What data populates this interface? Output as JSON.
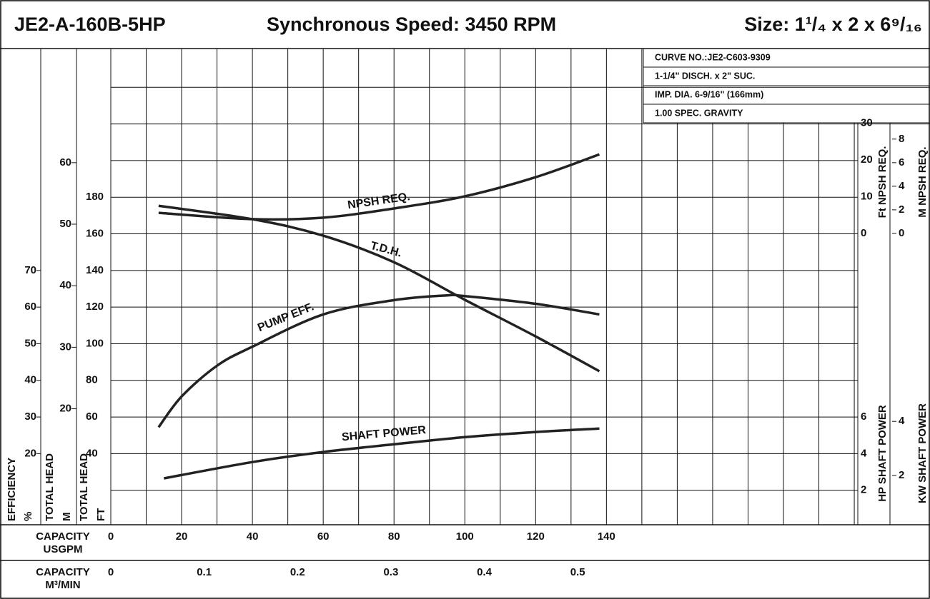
{
  "chart_data": {
    "type": "line",
    "title": "JE2-A-160B-5HP",
    "speed": "Synchronous Speed: 3450 RPM",
    "size": "Size: 1¹/₄ x 2 x 6⁹/₁₆",
    "notes": [
      "CURVE NO.:JE2-C603-9309",
      "1-1/4\" DISCH. x 2\" SUC.",
      "IMP. DIA. 6-9/16\" (166mm)",
      "1.00 SPEC. GRAVITY"
    ],
    "x_axes": [
      {
        "label": [
          "CAPACITY",
          "USGPM"
        ],
        "xlim": [
          0,
          211
        ],
        "xticks": [
          0,
          20,
          40,
          60,
          80,
          100,
          120,
          140
        ],
        "xgrid": [
          10,
          20,
          30,
          40,
          50,
          60,
          70,
          80,
          90,
          100,
          110,
          120,
          130,
          140,
          150,
          160,
          170,
          180,
          190,
          200,
          210
        ]
      },
      {
        "label": [
          "CAPACITY",
          "M³/MIN"
        ],
        "xlim": [
          0,
          0.8
        ],
        "xticks": [
          0,
          0.1,
          0.2,
          0.3,
          0.4,
          0.5
        ]
      }
    ],
    "y_axes": [
      {
        "label": [
          "EFFICIENCY",
          "%"
        ],
        "ylim": [
          0,
          130
        ],
        "yticks": [
          20,
          30,
          40,
          50,
          60,
          70
        ],
        "series": [
          {
            "name": "PUMP EFF.",
            "color": "#222222",
            "x": [
              13.5,
              20,
              30,
              40,
              60,
              80,
              95,
              100,
              120,
              138
            ],
            "values": [
              27.2,
              35.6,
              44,
              49.2,
              58,
              61.9,
              63.2,
              63,
              60.9,
              58
            ]
          }
        ]
      },
      {
        "label": [
          "TOTAL HEAD",
          "M"
        ],
        "ylim": [
          0.8,
          78.2
        ],
        "yticks": [
          20,
          30,
          40,
          50,
          60
        ],
        "series": []
      },
      {
        "label": [
          "TOTAL HEAD",
          "FT"
        ],
        "ylim": [
          0,
          260
        ],
        "yticks": [
          40,
          60,
          80,
          100,
          120,
          140,
          160,
          180
        ],
        "ygrid": [
          20,
          40,
          60,
          80,
          100,
          120,
          140,
          160,
          180,
          200,
          220,
          240
        ],
        "series": [
          {
            "name": "T.D.H.",
            "color": "#222222",
            "x": [
              13.5,
              40,
              60,
              80,
              100,
              120,
              138
            ],
            "values": [
              175.3,
              168,
              159,
              144.5,
              124,
              104,
              85
            ]
          }
        ]
      },
      {
        "label": [
          "Ft NPSH REQ."
        ],
        "ylim": [
          -79.8,
          49.7
        ],
        "yticks": [
          0,
          10,
          20,
          30
        ],
        "series": [
          {
            "name": "NPSH REQ.",
            "color": "#222222",
            "x": [
              13.5,
              40,
              60,
              80,
              100,
              120,
              138
            ],
            "values": [
              5.6,
              3.9,
              4.3,
              6.8,
              10.1,
              15.3,
              21.5
            ]
          }
        ]
      },
      {
        "label": [
          "M NPSH REQ."
        ],
        "ylim": [
          -24.9,
          15.5
        ],
        "yticks": [
          0,
          2,
          4,
          6,
          8
        ],
        "series": []
      },
      {
        "label": [
          "HP SHAFT POWER"
        ],
        "ylim": [
          0,
          26
        ],
        "yticks": [
          2,
          4,
          6
        ],
        "series": [
          {
            "name": "SHAFT POWER",
            "color": "#222222",
            "x": [
              15,
              40,
              60,
              80,
              100,
              120,
              138
            ],
            "values": [
              2.65,
              3.54,
              4.09,
              4.51,
              4.9,
              5.18,
              5.37
            ]
          }
        ]
      },
      {
        "label": [
          "KW SHAFT POWER"
        ],
        "ylim": [
          0.1,
          17.7
        ],
        "yticks": [
          2,
          4
        ],
        "series": []
      }
    ]
  }
}
